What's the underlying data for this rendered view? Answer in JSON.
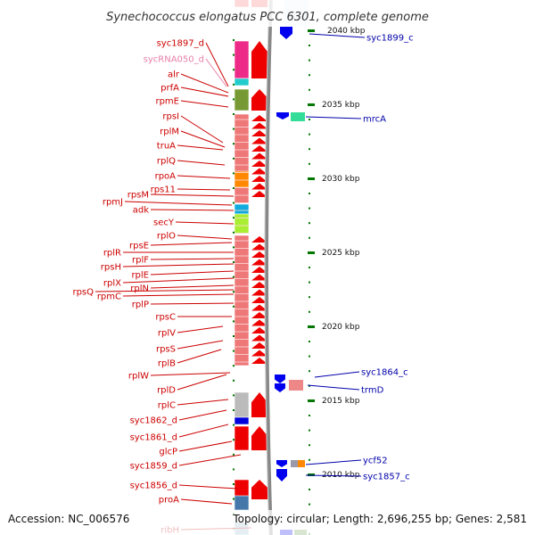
{
  "title": "Synechococcus elongatus PCC 6301, complete genome",
  "footer": {
    "accession": "Accession: NC_006576",
    "topology": "Topology: circular; Length: 2,696,255 bp; Genes: 2,581"
  },
  "colors": {
    "left_label": "#cc0000",
    "rna_label": "#e87fa8",
    "right_label": "#0000aa",
    "tick": "#007700",
    "backbone": "#888888",
    "arrow_red": "#ee0000",
    "arrow_blue": "#0000ee"
  },
  "scale": [
    {
      "label": "2040 kbp",
      "kbp": 2040
    },
    {
      "label": "2035 kbp",
      "kbp": 2035
    },
    {
      "label": "2030 kbp",
      "kbp": 2030
    },
    {
      "label": "2025 kbp",
      "kbp": 2025
    },
    {
      "label": "2020 kbp",
      "kbp": 2020
    },
    {
      "label": "2015 kbp",
      "kbp": 2015
    },
    {
      "label": "2010 kbp",
      "kbp": 2010
    }
  ],
  "left_genes": [
    {
      "name": "syc1897_d",
      "kind": "cds"
    },
    {
      "name": "sycRNA050_d",
      "kind": "rna"
    },
    {
      "name": "alr",
      "kind": "cds"
    },
    {
      "name": "prfA",
      "kind": "cds"
    },
    {
      "name": "rpmE",
      "kind": "cds"
    },
    {
      "name": "rpsI",
      "kind": "cds"
    },
    {
      "name": "rplM",
      "kind": "cds"
    },
    {
      "name": "truA",
      "kind": "cds"
    },
    {
      "name": "rplQ",
      "kind": "cds"
    },
    {
      "name": "rpoA",
      "kind": "cds"
    },
    {
      "name": "rps11",
      "kind": "cds"
    },
    {
      "name": "rpsM",
      "kind": "cds"
    },
    {
      "name": "rpmJ",
      "kind": "cds"
    },
    {
      "name": "adk",
      "kind": "cds"
    },
    {
      "name": "secY",
      "kind": "cds"
    },
    {
      "name": "rplO",
      "kind": "cds"
    },
    {
      "name": "rpsE",
      "kind": "cds"
    },
    {
      "name": "rplR",
      "kind": "cds"
    },
    {
      "name": "rplF",
      "kind": "cds"
    },
    {
      "name": "rpsH",
      "kind": "cds"
    },
    {
      "name": "rplE",
      "kind": "cds"
    },
    {
      "name": "rplX",
      "kind": "cds"
    },
    {
      "name": "rplN",
      "kind": "cds"
    },
    {
      "name": "rpsQ",
      "kind": "cds"
    },
    {
      "name": "rpmC",
      "kind": "cds"
    },
    {
      "name": "rplP",
      "kind": "cds"
    },
    {
      "name": "rpsC",
      "kind": "cds"
    },
    {
      "name": "rplV",
      "kind": "cds"
    },
    {
      "name": "rpsS",
      "kind": "cds"
    },
    {
      "name": "rplB",
      "kind": "cds"
    },
    {
      "name": "rplW",
      "kind": "cds"
    },
    {
      "name": "rplD",
      "kind": "cds"
    },
    {
      "name": "rplC",
      "kind": "cds"
    },
    {
      "name": "syc1862_d",
      "kind": "cds"
    },
    {
      "name": "syc1861_d",
      "kind": "cds"
    },
    {
      "name": "glcP",
      "kind": "cds"
    },
    {
      "name": "syc1859_d",
      "kind": "cds"
    },
    {
      "name": "syc1856_d",
      "kind": "cds"
    },
    {
      "name": "proA",
      "kind": "cds"
    },
    {
      "name": "ribH",
      "kind": "cds"
    }
  ],
  "right_genes": [
    {
      "name": "syc1899_c"
    },
    {
      "name": "mrcA"
    },
    {
      "name": "syc1864_c"
    },
    {
      "name": "trmD"
    },
    {
      "name": "ycf52"
    },
    {
      "name": "syc1857_c"
    }
  ]
}
